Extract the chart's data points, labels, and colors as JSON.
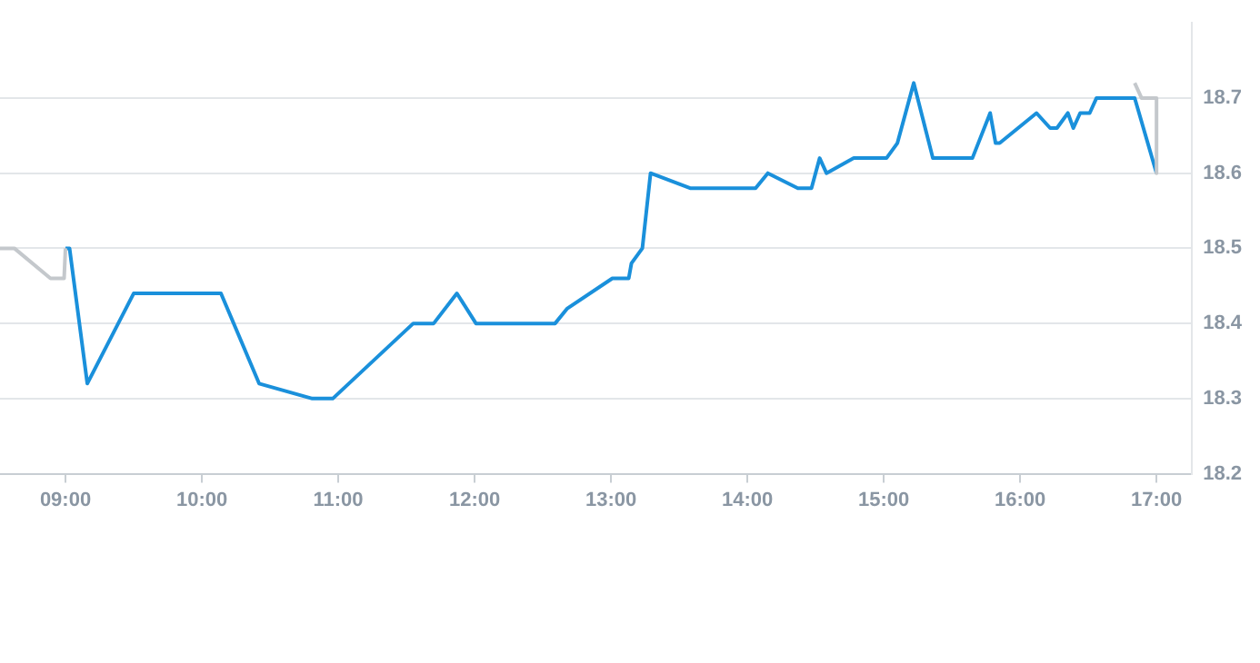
{
  "chart_data": {
    "type": "line",
    "xlim": [
      8.52,
      17.26
    ],
    "xticks": [
      {
        "value": 9,
        "label": "09:00"
      },
      {
        "value": 10,
        "label": "10:00"
      },
      {
        "value": 11,
        "label": "11:00"
      },
      {
        "value": 12,
        "label": "12:00"
      },
      {
        "value": 13,
        "label": "13:00"
      },
      {
        "value": 14,
        "label": "14:00"
      },
      {
        "value": 15,
        "label": "15:00"
      },
      {
        "value": 16,
        "label": "16:00"
      },
      {
        "value": 17,
        "label": "17:00"
      }
    ],
    "ylim": [
      18.2,
      18.8
    ],
    "yticks": [
      18.2,
      18.3,
      18.4,
      18.5,
      18.6,
      18.7
    ],
    "grid": "y",
    "legend": false,
    "marker": "none",
    "line_style": "solid",
    "series": [
      {
        "color": "#c4c8cc",
        "x": [
          8.52,
          8.625,
          8.89,
          8.99,
          9.0
        ],
        "values": [
          18.5,
          18.5,
          18.46,
          18.46,
          18.5
        ]
      },
      {
        "color": "#c4c8cc",
        "x": [
          16.84,
          16.89,
          17.0,
          17.0
        ],
        "values": [
          18.72,
          18.7,
          18.7,
          18.6
        ]
      },
      {
        "color": "#1a90db",
        "x": [
          9.0,
          9.03,
          9.16,
          9.5,
          10.14,
          10.42,
          10.81,
          10.96,
          11.55,
          11.7,
          11.87,
          12.01,
          12.59,
          12.68,
          13.01,
          13.13,
          13.15,
          13.23,
          13.29,
          13.58,
          14.06,
          14.15,
          14.37,
          14.47,
          14.53,
          14.58,
          14.78,
          15.02,
          15.1,
          15.22,
          15.36,
          15.65,
          15.78,
          15.82,
          15.85,
          16.12,
          16.22,
          16.27,
          16.35,
          16.39,
          16.44,
          16.51,
          16.56,
          16.84,
          17.0
        ],
        "values": [
          18.5,
          18.5,
          18.32,
          18.44,
          18.44,
          18.32,
          18.3,
          18.3,
          18.4,
          18.4,
          18.44,
          18.4,
          18.4,
          18.42,
          18.46,
          18.46,
          18.48,
          18.5,
          18.6,
          18.58,
          18.58,
          18.6,
          18.58,
          18.58,
          18.62,
          18.6,
          18.62,
          18.62,
          18.64,
          18.72,
          18.62,
          18.62,
          18.68,
          18.64,
          18.64,
          18.68,
          18.66,
          18.66,
          18.68,
          18.66,
          18.68,
          18.68,
          18.7,
          18.7,
          18.6
        ]
      }
    ]
  }
}
